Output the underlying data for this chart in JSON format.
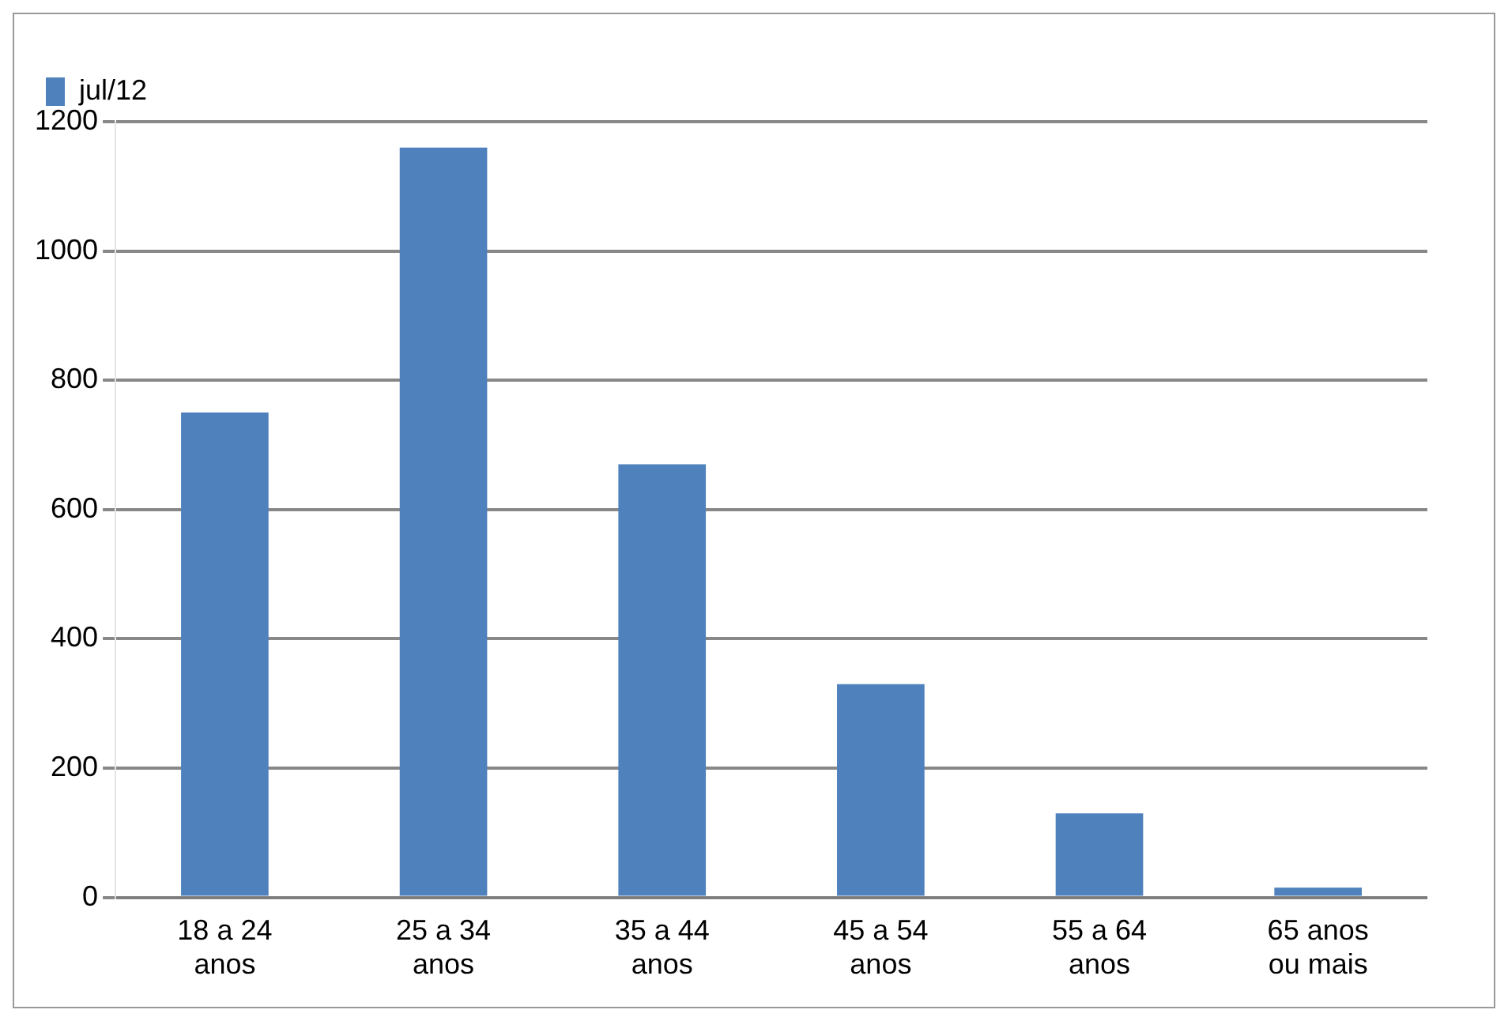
{
  "chart_data": {
    "type": "bar",
    "categories": [
      "18 a 24 anos",
      "25 a 34 anos",
      "35 a 44 anos",
      "45 a 54 anos",
      "55 a 64 anos",
      "65 anos ou mais"
    ],
    "series": [
      {
        "name": "jul/12",
        "color": "#4f81bd",
        "values": [
          750,
          1160,
          670,
          330,
          130,
          15
        ]
      }
    ],
    "ylim": [
      0,
      1200
    ],
    "yticks": [
      0,
      200,
      400,
      600,
      800,
      1000,
      1200
    ],
    "grid": "y",
    "legend": "top left"
  }
}
